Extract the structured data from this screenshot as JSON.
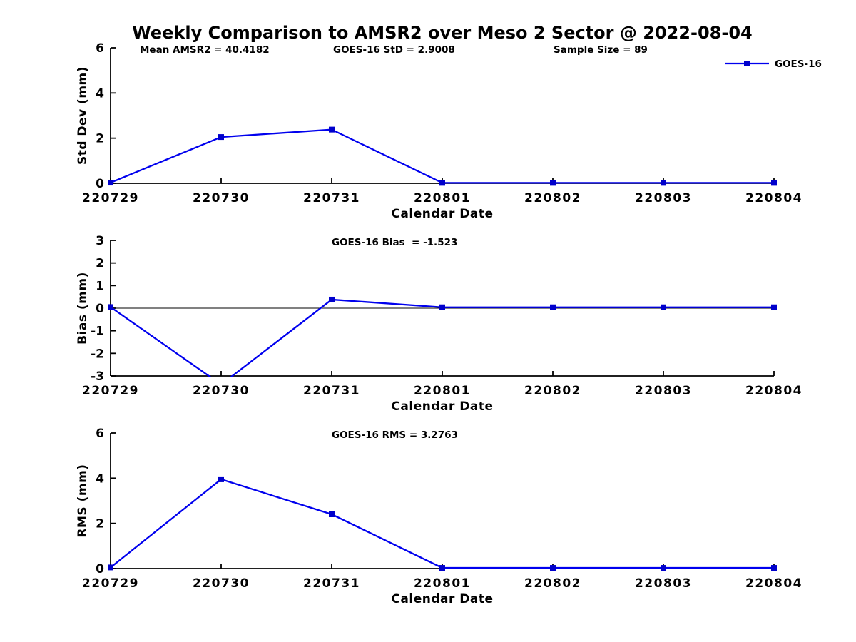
{
  "figure": {
    "title": "Weekly Comparison to AMSR2 over Meso 2 Sector @ 2022-08-04"
  },
  "colors": {
    "line": "#0000EE",
    "marker": "#0000CC",
    "axis": "#000000",
    "zero_line": "#000000",
    "text": "#000000",
    "background": "#FFFFFF"
  },
  "legend": {
    "series_label": "GOES-16",
    "position": "top-right"
  },
  "chart_data": [
    {
      "type": "line",
      "name": "std-dev",
      "annotations": [
        "Mean AMSR2 = 40.4182",
        "GOES-16 StD = 2.9008",
        "Sample Size = 89"
      ],
      "categories": [
        "220729",
        "220730",
        "220731",
        "220801",
        "220802",
        "220803",
        "220804"
      ],
      "series": [
        {
          "name": "GOES-16",
          "values": [
            0.03,
            2.05,
            2.38,
            0.02,
            0.02,
            0.02,
            0.02
          ]
        }
      ],
      "xlabel": "Calendar Date",
      "ylabel": "Std Dev (mm)",
      "ylim": [
        0,
        6
      ],
      "yticks": [
        0,
        2,
        4,
        6
      ],
      "grid": false,
      "legend": true,
      "zero_line": false
    },
    {
      "type": "line",
      "name": "bias",
      "annotations": [
        "GOES-16 Bias  = -1.523"
      ],
      "categories": [
        "220729",
        "220730",
        "220731",
        "220801",
        "220802",
        "220803",
        "220804"
      ],
      "series": [
        {
          "name": "GOES-16",
          "values": [
            0.05,
            -3.38,
            0.38,
            0.04,
            0.04,
            0.04,
            0.04
          ]
        }
      ],
      "xlabel": "Calendar Date",
      "ylabel": "Bias (mm)",
      "ylim": [
        -3,
        3
      ],
      "yticks": [
        -3,
        -2,
        -1,
        0,
        1,
        2,
        3
      ],
      "grid": false,
      "legend": false,
      "zero_line": true
    },
    {
      "type": "line",
      "name": "rms",
      "annotations": [
        "GOES-16 RMS = 3.2763"
      ],
      "categories": [
        "220729",
        "220730",
        "220731",
        "220801",
        "220802",
        "220803",
        "220804"
      ],
      "series": [
        {
          "name": "GOES-16",
          "values": [
            0.05,
            3.95,
            2.4,
            0.03,
            0.03,
            0.03,
            0.03
          ]
        }
      ],
      "xlabel": "Calendar Date",
      "ylabel": "RMS (mm)",
      "ylim": [
        0,
        6
      ],
      "yticks": [
        0,
        2,
        4,
        6
      ],
      "grid": false,
      "legend": false,
      "zero_line": false
    }
  ]
}
